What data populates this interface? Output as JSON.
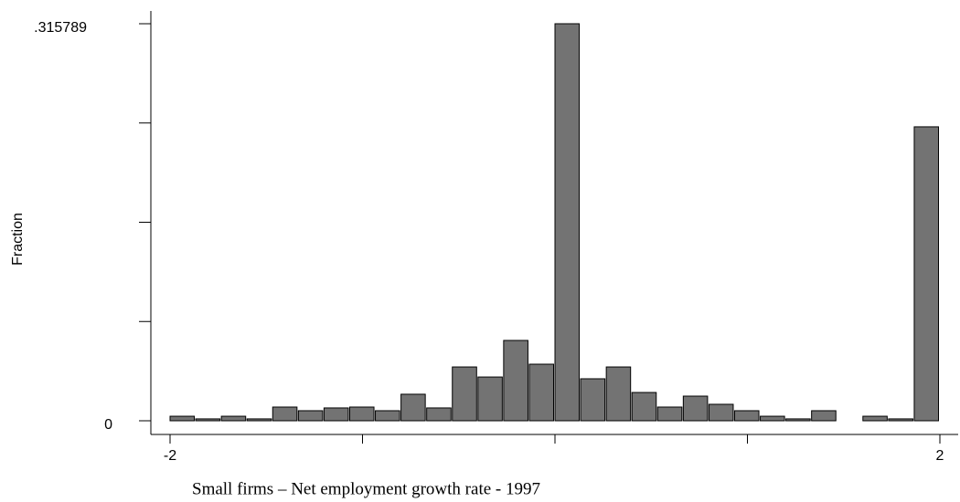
{
  "chart_data": {
    "type": "histogram",
    "x_label": "Small firms – Net employment growth rate - 1997",
    "y_label": "Fraction",
    "bins": [
      -2,
      -1.8667,
      -1.7333,
      -1.6,
      -1.4667,
      -1.3333,
      -1.2,
      -1.0667,
      -0.9333,
      -0.8,
      -0.6667,
      -0.5333,
      -0.4,
      -0.2667,
      -0.1333,
      0,
      0.1333,
      0.2667,
      0.4,
      0.5333,
      0.6667,
      0.8,
      0.9333,
      1.0667,
      1.2,
      1.3333,
      1.4667,
      1.6,
      1.7333,
      1.8667,
      2
    ],
    "values": [
      0.0036,
      0.0015,
      0.0036,
      0.0015,
      0.0109,
      0.008,
      0.0102,
      0.0109,
      0.008,
      0.0211,
      0.0102,
      0.0428,
      0.0348,
      0.0639,
      0.045,
      0.315789,
      0.0334,
      0.0428,
      0.0225,
      0.0109,
      0.0196,
      0.0131,
      0.008,
      0.0036,
      0.0015,
      0.008,
      0,
      0.0036,
      0.0015,
      0.2338
    ],
    "color": "#737373",
    "xlim": [
      -2,
      2
    ],
    "xticks": [
      -2,
      2
    ],
    "xticks_minor": [
      -1,
      0,
      1
    ],
    "ylim": [
      0,
      0.315789
    ],
    "yticks": [
      0,
      {
        "value": 0.315789,
        "label": ".315789"
      }
    ],
    "yticks_minor": [
      0.078947,
      0.157895,
      0.236842
    ]
  }
}
